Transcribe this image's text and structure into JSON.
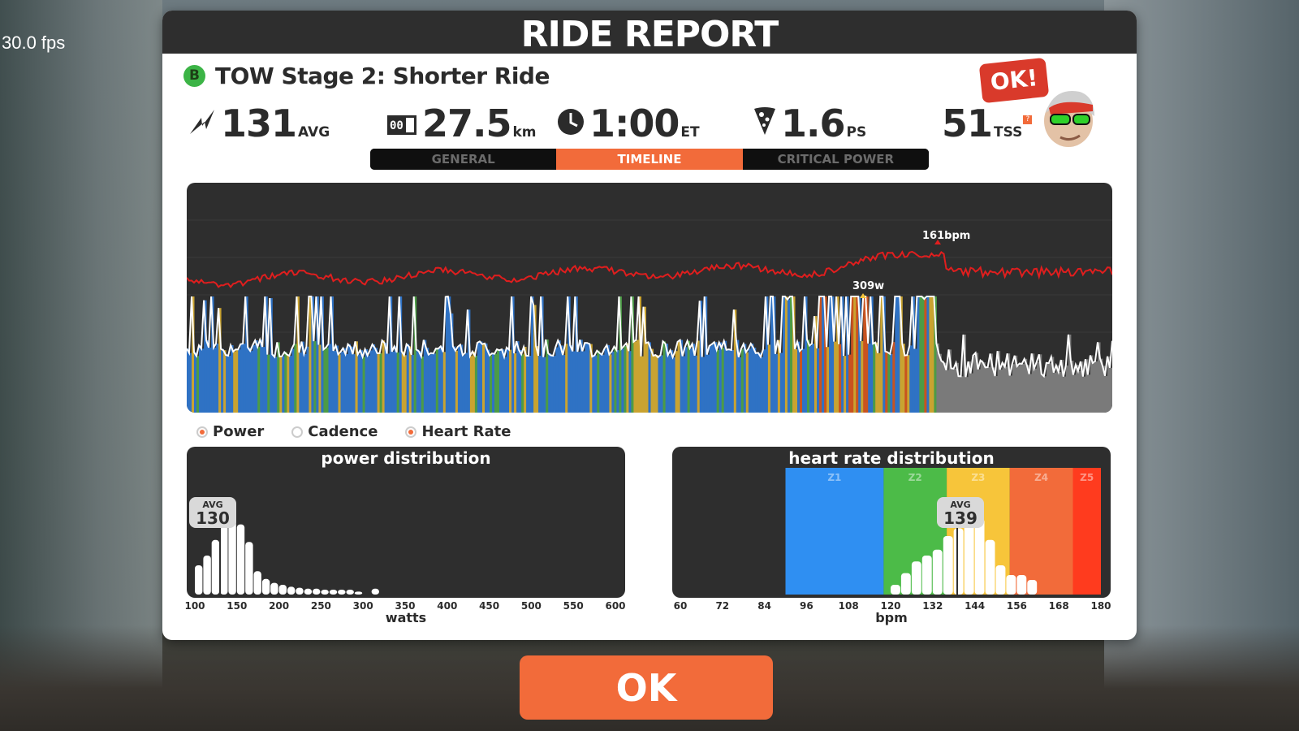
{
  "fps": "30.0 fps",
  "panel": {
    "title": "RIDE REPORT"
  },
  "route": {
    "badge": "B",
    "title": "TOW Stage 2: Shorter Ride"
  },
  "stats": {
    "power": {
      "value": "131",
      "unit": "AVG",
      "icon": "power-bolt-icon"
    },
    "distance": {
      "value": "27.5",
      "unit": "km",
      "icon": "odometer-icon"
    },
    "time": {
      "value": "1:00",
      "unit": "ET",
      "icon": "clock-icon"
    },
    "pizza": {
      "value": "1.6",
      "unit": "PS",
      "icon": "pizza-slice-icon"
    },
    "tss": {
      "value": "51",
      "unit": "TSS",
      "help": "?"
    }
  },
  "ok_bubble": "OK!",
  "tabs": [
    {
      "label": "GENERAL",
      "active": false
    },
    {
      "label": "TIMELINE",
      "active": true
    },
    {
      "label": "CRITICAL POWER",
      "active": false
    }
  ],
  "timeline": {
    "hr_peak_label": "161bpm",
    "power_peak_label": "309w",
    "hr_color": "#e01e1e",
    "power_line_color": "#ffffff"
  },
  "legend": [
    {
      "label": "Power",
      "on": true
    },
    {
      "label": "Cadence",
      "on": false
    },
    {
      "label": "Heart Rate",
      "on": true
    }
  ],
  "chart_data": [
    {
      "type": "bar",
      "title": "power distribution",
      "xlabel": "watts",
      "x_ticks": [
        "100",
        "150",
        "200",
        "250",
        "300",
        "350",
        "400",
        "450",
        "500",
        "550",
        "600"
      ],
      "xlim": [
        100,
        600
      ],
      "bins_watts": [
        100,
        110,
        120,
        130,
        140,
        150,
        160,
        170,
        180,
        190,
        200,
        210,
        220,
        230,
        240,
        250,
        260,
        270,
        280,
        290,
        300,
        310
      ],
      "values": [
        0.3,
        0.4,
        0.56,
        0.84,
        0.84,
        0.72,
        0.54,
        0.24,
        0.16,
        0.12,
        0.1,
        0.08,
        0.07,
        0.06,
        0.06,
        0.05,
        0.05,
        0.05,
        0.05,
        0.03,
        0.0,
        0.06
      ],
      "avg": {
        "label": "AVG",
        "value": "130"
      }
    },
    {
      "type": "bar",
      "title": "heart rate distribution",
      "xlabel": "bpm",
      "x_ticks": [
        "60",
        "72",
        "84",
        "96",
        "108",
        "120",
        "132",
        "144",
        "156",
        "168",
        "180"
      ],
      "xlim": [
        60,
        180
      ],
      "zones": [
        {
          "name": "Z1",
          "from": 90,
          "to": 118,
          "color": "#2f8ff2"
        },
        {
          "name": "Z2",
          "from": 118,
          "to": 136,
          "color": "#4cbb48"
        },
        {
          "name": "Z3",
          "from": 136,
          "to": 154,
          "color": "#f7c53a"
        },
        {
          "name": "Z4",
          "from": 154,
          "to": 172,
          "color": "#f26b3a"
        },
        {
          "name": "Z5",
          "from": 172,
          "to": 180,
          "color": "#ff3b1e"
        }
      ],
      "bins_bpm": [
        120,
        123,
        126,
        129,
        132,
        135,
        138,
        141,
        144,
        147,
        150,
        153,
        156,
        159
      ],
      "values": [
        0.1,
        0.22,
        0.34,
        0.4,
        0.46,
        0.6,
        0.68,
        0.8,
        0.78,
        0.56,
        0.3,
        0.2,
        0.2,
        0.15
      ],
      "avg": {
        "label": "AVG",
        "value": "139"
      }
    }
  ],
  "ok_button": "OK"
}
